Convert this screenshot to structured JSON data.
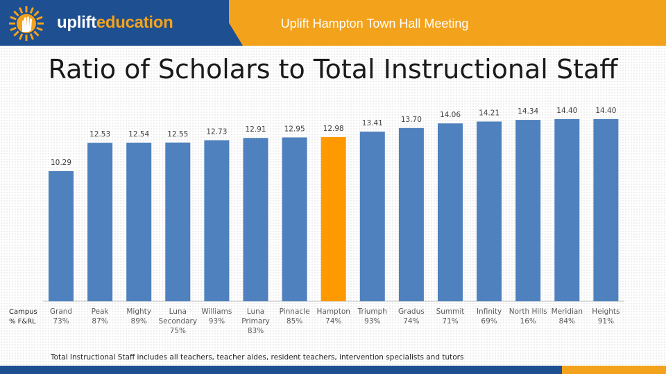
{
  "header": {
    "title": "Uplift Hampton Town Hall Meeting",
    "logo_word1": "uplift",
    "logo_word2": "education",
    "colors": {
      "navy": "#1d4f91",
      "gold": "#f3a21c"
    }
  },
  "slide_title": "Ratio of Scholars to Total Instructional Staff",
  "footnote": "Total Instructional Staff includes all teachers, teacher aides, resident teachers, intervention specialists and tutors",
  "chart_data": {
    "type": "bar",
    "title": "Ratio of Scholars to Total Instructional Staff",
    "row_label": "Campus\n% F&RL",
    "categories": [
      "Grand",
      "Peak",
      "Mighty",
      "Luna\nSecondary",
      "Williams",
      "Luna\nPrimary",
      "Pinnacle",
      "Hampton",
      "Triumph",
      "Gradus",
      "Summit",
      "Infinity",
      "North Hills",
      "Meridian",
      "Heights"
    ],
    "frl": [
      "73%",
      "87%",
      "89%",
      "75%",
      "93%",
      "83%",
      "85%",
      "74%",
      "93%",
      "74%",
      "71%",
      "69%",
      "16%",
      "84%",
      "91%"
    ],
    "values": [
      10.29,
      12.53,
      12.54,
      12.55,
      12.73,
      12.91,
      12.95,
      12.98,
      13.41,
      13.7,
      14.06,
      14.21,
      14.34,
      14.4,
      14.4
    ],
    "value_labels": [
      "10.29",
      "12.53",
      "12.54",
      "12.55",
      "12.73",
      "12.91",
      "12.95",
      "12.98",
      "13.41",
      "13.70",
      "14.06",
      "14.21",
      "14.34",
      "14.40",
      "14.40"
    ],
    "highlight_index": 7,
    "colors": {
      "bar": "#4e81bd",
      "highlight": "#ff9900"
    },
    "ylim": [
      0,
      14.4
    ],
    "grid": false,
    "legend": "none"
  }
}
